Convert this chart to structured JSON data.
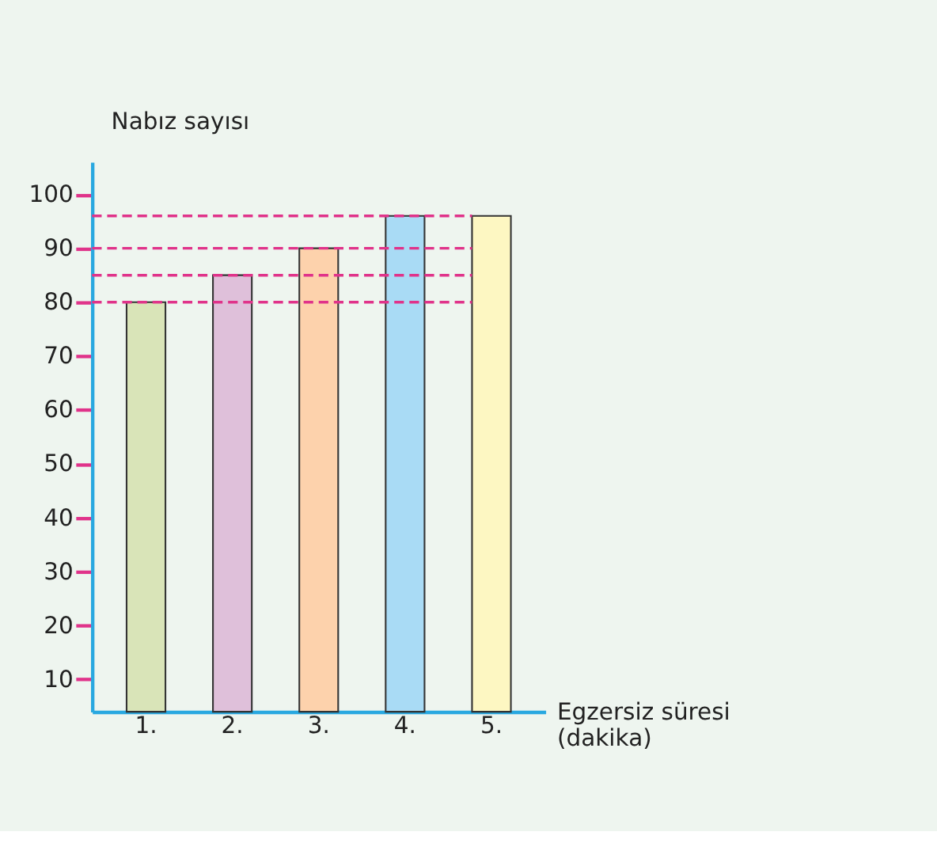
{
  "chart_data": {
    "type": "bar",
    "ylabel": "Nabız sayısı",
    "xlabel": "Egzersiz süresi (dakika)",
    "categories": [
      "1.",
      "2.",
      "3.",
      "4.",
      "5."
    ],
    "values": [
      80,
      85,
      90,
      96,
      96
    ],
    "colors": [
      "#d9e4b8",
      "#dfc0da",
      "#fdd2ac",
      "#a9dbf5",
      "#fdf7c2"
    ],
    "ylim": [
      4,
      106
    ],
    "yticks": [
      10,
      20,
      30,
      40,
      50,
      60,
      70,
      80,
      90,
      100
    ],
    "grid": false,
    "ref_lines": [
      {
        "axis": "y",
        "value": 80,
        "color": "#e0338a",
        "line_style": "dashed"
      },
      {
        "axis": "y",
        "value": 85,
        "color": "#e0338a",
        "line_style": "dashed"
      },
      {
        "axis": "y",
        "value": 90,
        "color": "#e0338a",
        "line_style": "dashed"
      },
      {
        "axis": "y",
        "value": 96,
        "color": "#e0338a",
        "line_style": "dashed"
      }
    ]
  }
}
